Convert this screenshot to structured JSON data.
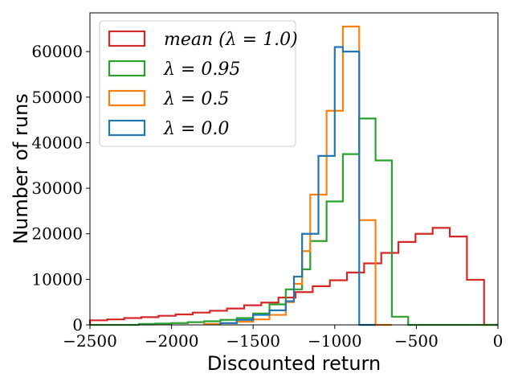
{
  "chart_data": {
    "type": "histogram",
    "title": "",
    "xlabel": "Discounted return",
    "ylabel": "Number of runs",
    "xlim": [
      -2500,
      0
    ],
    "ylim": [
      0,
      68500
    ],
    "xticks": [
      -2500,
      -2000,
      -1500,
      -1000,
      -500,
      0
    ],
    "xtick_labels": [
      "−2500",
      "−2000",
      "−1500",
      "−1000",
      "−500",
      "0"
    ],
    "yticks": [
      0,
      10000,
      20000,
      30000,
      40000,
      50000,
      60000
    ],
    "ytick_labels": [
      "0",
      "10000",
      "20000",
      "30000",
      "40000",
      "50000",
      "60000"
    ],
    "grid": false,
    "legend_position": "top-left",
    "series": [
      {
        "name": "mean (λ = 1.0)",
        "color": "#d62728",
        "bin_edges": [
          -2500,
          -2395,
          -2290,
          -2185,
          -2080,
          -1975,
          -1870,
          -1765,
          -1660,
          -1555,
          -1450,
          -1345,
          -1240,
          -1135,
          -1030,
          -925,
          -820,
          -715,
          -610,
          -505,
          -400,
          -295,
          -190,
          -85,
          0
        ],
        "counts": [
          1000,
          1200,
          1500,
          1700,
          2000,
          2300,
          2700,
          3100,
          3600,
          4300,
          4900,
          6000,
          7200,
          8500,
          9800,
          11500,
          13500,
          15800,
          18200,
          20000,
          21300,
          19400,
          9900,
          0
        ]
      },
      {
        "name": "λ = 0.95",
        "color": "#2ca02c",
        "bin_edges": [
          -2500,
          -2400,
          -2300,
          -2200,
          -2100,
          -2000,
          -1900,
          -1800,
          -1700,
          -1600,
          -1500,
          -1400,
          -1300,
          -1200,
          -1150,
          -1050,
          -950,
          -850,
          -750,
          -650,
          -550,
          -450,
          -350,
          -250,
          0
        ],
        "counts": [
          0,
          0,
          0,
          200,
          300,
          400,
          600,
          800,
          1100,
          1500,
          2500,
          4500,
          7800,
          12200,
          18400,
          27100,
          37500,
          45300,
          36100,
          1800,
          0,
          0,
          0,
          0
        ]
      },
      {
        "name": "λ = 0.5",
        "color": "#ff7f0e",
        "bin_edges": [
          -1800,
          -1700,
          -1600,
          -1500,
          -1400,
          -1300,
          -1250,
          -1200,
          -1150,
          -1050,
          -950,
          -850,
          -750,
          -650
        ],
        "counts": [
          200,
          400,
          700,
          1200,
          2200,
          5000,
          9000,
          16200,
          28600,
          47000,
          65500,
          23000,
          0
        ]
      },
      {
        "name": "λ = 0.0",
        "color": "#1f77b4",
        "bin_edges": [
          -1700,
          -1600,
          -1500,
          -1400,
          -1300,
          -1250,
          -1200,
          -1150,
          -1100,
          -1050,
          -1000,
          -950,
          -850,
          -750
        ],
        "counts": [
          400,
          1100,
          2200,
          3200,
          5200,
          10600,
          20000,
          20000,
          37100,
          37100,
          61000,
          60000,
          0
        ]
      }
    ]
  }
}
